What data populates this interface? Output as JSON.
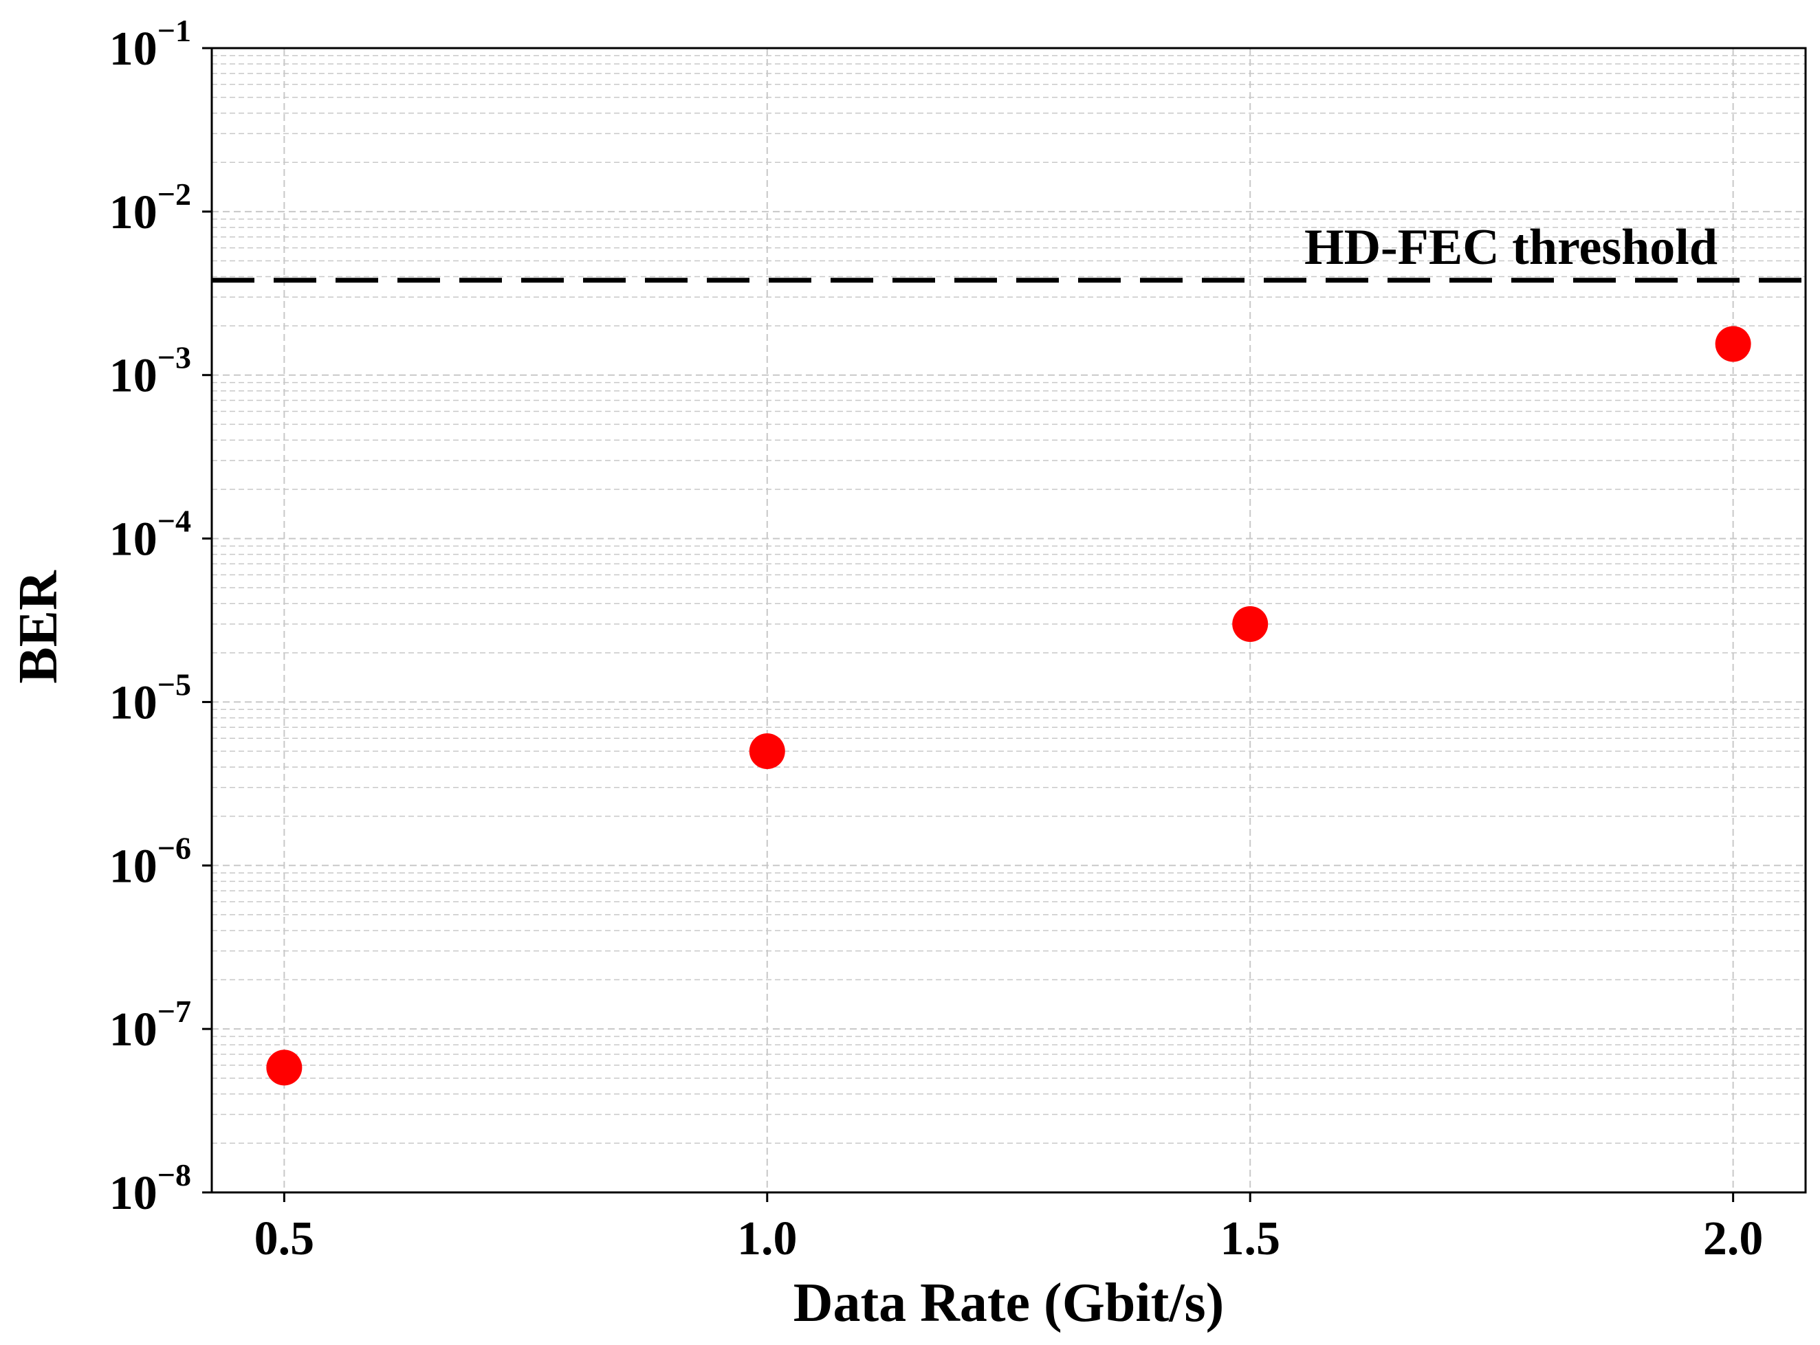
{
  "chart_data": {
    "type": "scatter",
    "xlabel": "Data Rate (Gbit/s)",
    "ylabel": "BER",
    "x_scale": "linear",
    "y_scale": "log",
    "xlim": [
      0.425,
      2.075
    ],
    "ylim": [
      1e-08,
      0.1
    ],
    "x_ticks": [
      {
        "value": 0.5,
        "label": "0.5"
      },
      {
        "value": 1.0,
        "label": "1.0"
      },
      {
        "value": 1.5,
        "label": "1.5"
      },
      {
        "value": 2.0,
        "label": "2.0"
      }
    ],
    "y_ticks": [
      {
        "value": 1e-08,
        "base": "10",
        "exp": "−8"
      },
      {
        "value": 1e-07,
        "base": "10",
        "exp": "−7"
      },
      {
        "value": 1e-06,
        "base": "10",
        "exp": "−6"
      },
      {
        "value": 1e-05,
        "base": "10",
        "exp": "−5"
      },
      {
        "value": 0.0001,
        "base": "10",
        "exp": "−4"
      },
      {
        "value": 0.001,
        "base": "10",
        "exp": "−3"
      },
      {
        "value": 0.01,
        "base": "10",
        "exp": "−2"
      },
      {
        "value": 0.1,
        "base": "10",
        "exp": "−1"
      }
    ],
    "series": [
      {
        "x": [
          0.5,
          1.0,
          1.5,
          2.0
        ],
        "y": [
          5.8e-08,
          5e-06,
          3e-05,
          0.00155
        ],
        "color": "#ff0000",
        "marker": "circle"
      }
    ],
    "reference_lines": [
      {
        "y": 0.0038,
        "style": "dashed",
        "color": "#000000",
        "label": "HD-FEC threshold"
      }
    ],
    "grid": {
      "major": true,
      "minor": true,
      "style": "dashed",
      "color": "#c8c8c8"
    }
  }
}
